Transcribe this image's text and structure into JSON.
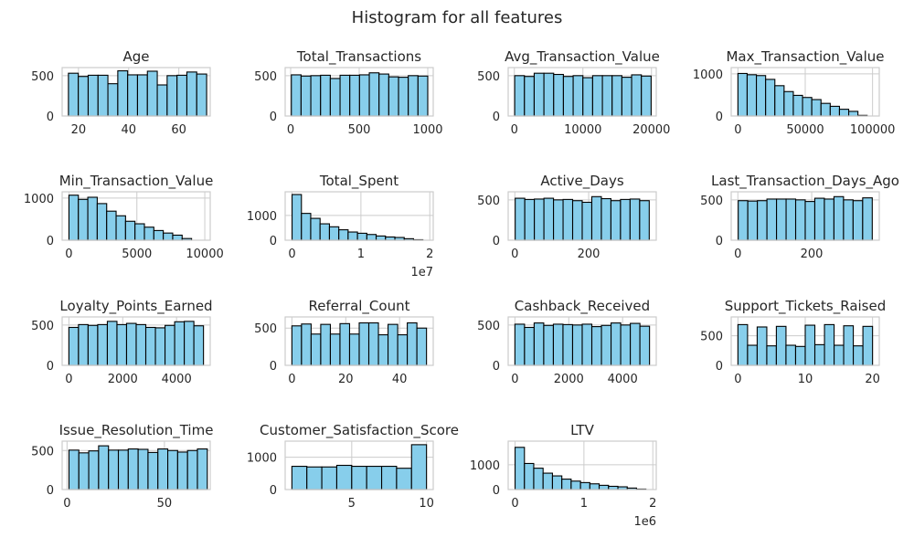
{
  "figure": {
    "title": "Histogram for all features"
  },
  "style": {
    "bar_fill": "#87ceeb",
    "bar_edge": "#000000",
    "grid": "#cccccc",
    "frame": "#cccccc"
  },
  "chart_data": [
    {
      "type": "bar",
      "title": "Age",
      "xlim": [
        13.5,
        72.5
      ],
      "ylim": [
        0,
        600
      ],
      "yticks": [
        0,
        500
      ],
      "xticks": [
        20,
        40,
        60
      ],
      "x_tick_labels": [
        "20",
        "40",
        "60"
      ],
      "x_offset": "",
      "bin_edges": [
        16.0,
        19.93,
        23.87,
        27.8,
        31.73,
        35.67,
        39.6,
        43.53,
        47.47,
        51.4,
        55.33,
        59.27,
        63.2,
        67.13,
        71.07
      ],
      "values": [
        530,
        490,
        505,
        505,
        400,
        560,
        510,
        510,
        555,
        385,
        500,
        505,
        545,
        520
      ]
    },
    {
      "type": "bar",
      "title": "Total_Transactions",
      "xlim": [
        -40,
        1040
      ],
      "ylim": [
        0,
        600
      ],
      "yticks": [
        0,
        500
      ],
      "xticks": [
        0,
        500,
        1000
      ],
      "x_tick_labels": [
        "0",
        "500",
        "1000"
      ],
      "x_offset": "",
      "bin_edges": [
        5,
        76.07,
        147.14,
        218.21,
        289.29,
        360.36,
        431.43,
        502.5,
        573.57,
        644.64,
        715.71,
        786.79,
        857.86,
        928.93,
        1000
      ],
      "values": [
        510,
        495,
        500,
        505,
        465,
        505,
        505,
        510,
        535,
        520,
        485,
        480,
        500,
        495
      ]
    },
    {
      "type": "bar",
      "title": "Avg_Transaction_Value",
      "xlim": [
        -900,
        20700
      ],
      "ylim": [
        0,
        600
      ],
      "yticks": [
        0,
        500
      ],
      "xticks": [
        0,
        10000,
        20000
      ],
      "x_tick_labels": [
        "0",
        "10000",
        "20000"
      ],
      "x_offset": "",
      "bin_edges": [
        50,
        1471,
        2893,
        4314,
        5736,
        7157,
        8579,
        10000,
        11421,
        12843,
        14264,
        15686,
        17107,
        18529,
        19950
      ],
      "values": [
        500,
        490,
        530,
        530,
        515,
        490,
        500,
        475,
        500,
        500,
        500,
        480,
        510,
        495
      ]
    },
    {
      "type": "bar",
      "title": "Max_Transaction_Value",
      "xlim": [
        -5000,
        105000
      ],
      "ylim": [
        0,
        1150
      ],
      "yticks": [
        0,
        1000
      ],
      "xticks": [
        0,
        50000,
        100000
      ],
      "x_tick_labels": [
        "0",
        "50000",
        "100000"
      ],
      "x_offset": "",
      "bin_edges": [
        0,
        6857,
        13714,
        20571,
        27429,
        34286,
        41143,
        48000,
        54857,
        61714,
        68571,
        75429,
        82286,
        89143,
        96000
      ],
      "values": [
        1010,
        980,
        960,
        870,
        720,
        580,
        490,
        440,
        390,
        300,
        230,
        160,
        110,
        15
      ]
    },
    {
      "type": "bar",
      "title": "Min_Transaction_Value",
      "xlim": [
        -500,
        10400
      ],
      "ylim": [
        0,
        1150
      ],
      "yticks": [
        0,
        1000
      ],
      "xticks": [
        0,
        5000,
        10000
      ],
      "x_tick_labels": [
        "0",
        "5000",
        "10000"
      ],
      "x_offset": "",
      "bin_edges": [
        0,
        694,
        1389,
        2083,
        2778,
        3472,
        4167,
        4861,
        5556,
        6250,
        6944,
        7639,
        8333,
        9028,
        9722
      ],
      "values": [
        1070,
        970,
        1020,
        870,
        690,
        580,
        450,
        390,
        310,
        230,
        170,
        120,
        40,
        0
      ]
    },
    {
      "type": "bar",
      "title": "Total_Spent",
      "x_scale_note": "1e7",
      "xlim": [
        -0.1,
        2.05
      ],
      "ylim": [
        0,
        1950
      ],
      "yticks": [
        0,
        1000
      ],
      "xticks": [
        0,
        1,
        2
      ],
      "x_tick_labels": [
        "0",
        "1",
        "2"
      ],
      "x_offset": "1e7",
      "bin_edges": [
        0.0,
        0.136,
        0.271,
        0.407,
        0.543,
        0.679,
        0.814,
        0.95,
        1.086,
        1.221,
        1.357,
        1.493,
        1.629,
        1.764,
        1.9
      ],
      "values": [
        1840,
        1080,
        880,
        660,
        540,
        420,
        330,
        280,
        230,
        170,
        130,
        110,
        60,
        20
      ]
    },
    {
      "type": "bar",
      "title": "Active_Days",
      "xlim": [
        -18,
        383
      ],
      "ylim": [
        0,
        600
      ],
      "yticks": [
        0,
        500
      ],
      "xticks": [
        0,
        200
      ],
      "x_tick_labels": [
        "0",
        "200"
      ],
      "x_offset": "",
      "bin_edges": [
        1,
        26.93,
        52.86,
        78.79,
        104.71,
        130.64,
        156.57,
        182.5,
        208.43,
        234.36,
        260.29,
        286.21,
        312.14,
        338.07,
        364
      ],
      "values": [
        520,
        505,
        510,
        520,
        500,
        505,
        490,
        470,
        540,
        515,
        490,
        505,
        510,
        490
      ]
    },
    {
      "type": "bar",
      "title": "Last_Transaction_Days_Ago",
      "xlim": [
        -18,
        383
      ],
      "ylim": [
        0,
        600
      ],
      "yticks": [
        0,
        500
      ],
      "xticks": [
        0,
        200
      ],
      "x_tick_labels": [
        "0",
        "200"
      ],
      "x_offset": "",
      "bin_edges": [
        1,
        26.93,
        52.86,
        78.79,
        104.71,
        130.64,
        156.57,
        182.5,
        208.43,
        234.36,
        260.29,
        286.21,
        312.14,
        338.07,
        364
      ],
      "values": [
        490,
        485,
        490,
        510,
        510,
        510,
        500,
        480,
        520,
        510,
        540,
        500,
        490,
        525
      ]
    },
    {
      "type": "bar",
      "title": "Loyalty_Points_Earned",
      "xlim": [
        -250,
        5250
      ],
      "ylim": [
        0,
        600
      ],
      "yticks": [
        0,
        500
      ],
      "xticks": [
        0,
        2000,
        4000
      ],
      "x_tick_labels": [
        "0",
        "2000",
        "4000"
      ],
      "x_offset": "",
      "bin_edges": [
        0,
        357,
        714,
        1071,
        1429,
        1786,
        2143,
        2500,
        2857,
        3214,
        3571,
        3929,
        4286,
        4643,
        5000
      ],
      "values": [
        470,
        505,
        495,
        505,
        545,
        505,
        520,
        505,
        470,
        465,
        495,
        540,
        545,
        490
      ]
    },
    {
      "type": "bar",
      "title": "Referral_Count",
      "xlim": [
        -2.5,
        52.5
      ],
      "ylim": [
        0,
        650
      ],
      "yticks": [
        0,
        500
      ],
      "xticks": [
        0,
        20,
        40
      ],
      "x_tick_labels": [
        "0",
        "20",
        "40"
      ],
      "x_offset": "",
      "bin_edges": [
        0,
        3.57,
        7.14,
        10.71,
        14.29,
        17.86,
        21.43,
        25.0,
        28.57,
        32.14,
        35.71,
        39.29,
        42.86,
        46.43,
        50
      ],
      "values": [
        530,
        555,
        420,
        550,
        420,
        560,
        420,
        570,
        570,
        410,
        550,
        410,
        570,
        500
      ]
    },
    {
      "type": "bar",
      "title": "Cashback_Received",
      "xlim": [
        -250,
        5250
      ],
      "ylim": [
        0,
        600
      ],
      "yticks": [
        0,
        500
      ],
      "xticks": [
        0,
        2000,
        4000
      ],
      "x_tick_labels": [
        "0",
        "2000",
        "4000"
      ],
      "x_offset": "",
      "bin_edges": [
        0,
        357,
        714,
        1071,
        1429,
        1786,
        2143,
        2500,
        2857,
        3214,
        3571,
        3929,
        4286,
        4643,
        5000
      ],
      "values": [
        510,
        470,
        525,
        495,
        510,
        505,
        500,
        510,
        480,
        495,
        525,
        500,
        520,
        485
      ]
    },
    {
      "type": "bar",
      "title": "Support_Tickets_Raised",
      "xlim": [
        -1,
        21
      ],
      "ylim": [
        0,
        820
      ],
      "yticks": [
        0,
        500
      ],
      "xticks": [
        0,
        10,
        20
      ],
      "x_tick_labels": [
        "0",
        "10",
        "20"
      ],
      "x_offset": "",
      "bin_edges": [
        0,
        1.43,
        2.86,
        4.29,
        5.71,
        7.14,
        8.57,
        10.0,
        11.43,
        12.86,
        14.29,
        15.71,
        17.14,
        18.57,
        20
      ],
      "values": [
        690,
        340,
        650,
        330,
        660,
        340,
        320,
        680,
        350,
        690,
        340,
        670,
        330,
        660
      ]
    },
    {
      "type": "bar",
      "title": "Issue_Resolution_Time",
      "xlim": [
        -2.5,
        73.5
      ],
      "ylim": [
        0,
        620
      ],
      "yticks": [
        0,
        500
      ],
      "xticks": [
        0,
        50
      ],
      "x_tick_labels": [
        "0",
        "50"
      ],
      "x_offset": "",
      "bin_edges": [
        1,
        6.07,
        11.14,
        16.21,
        21.29,
        26.36,
        31.43,
        36.5,
        41.57,
        46.64,
        51.71,
        56.79,
        61.86,
        66.93,
        72
      ],
      "values": [
        505,
        470,
        495,
        560,
        505,
        505,
        520,
        515,
        475,
        520,
        500,
        480,
        500,
        520
      ]
    },
    {
      "type": "bar",
      "title": "Customer_Satisfaction_Score",
      "xlim": [
        0.55,
        10.45
      ],
      "ylim": [
        0,
        1500
      ],
      "yticks": [
        0,
        1000
      ],
      "xticks": [
        5,
        10
      ],
      "x_tick_labels": [
        "5",
        "10"
      ],
      "x_offset": "",
      "bin_edges": [
        1.0,
        2.0,
        3.0,
        4.0,
        5.0,
        6.0,
        7.0,
        8.0,
        9.0,
        10.0
      ],
      "values": [
        720,
        700,
        700,
        750,
        720,
        720,
        720,
        660,
        1390
      ]
    },
    {
      "type": "bar",
      "title": "LTV",
      "x_scale_note": "1e6",
      "xlim": [
        -0.1,
        2.05
      ],
      "ylim": [
        0,
        1950
      ],
      "yticks": [
        0,
        1000
      ],
      "xticks": [
        0,
        1,
        2
      ],
      "x_tick_labels": [
        "0",
        "1",
        "2"
      ],
      "x_offset": "1e6",
      "bin_edges": [
        0.0,
        0.136,
        0.271,
        0.407,
        0.543,
        0.679,
        0.814,
        0.95,
        1.086,
        1.221,
        1.357,
        1.493,
        1.629,
        1.764,
        1.9
      ],
      "values": [
        1700,
        1050,
        860,
        660,
        550,
        420,
        340,
        280,
        230,
        170,
        130,
        110,
        60,
        20
      ]
    }
  ]
}
